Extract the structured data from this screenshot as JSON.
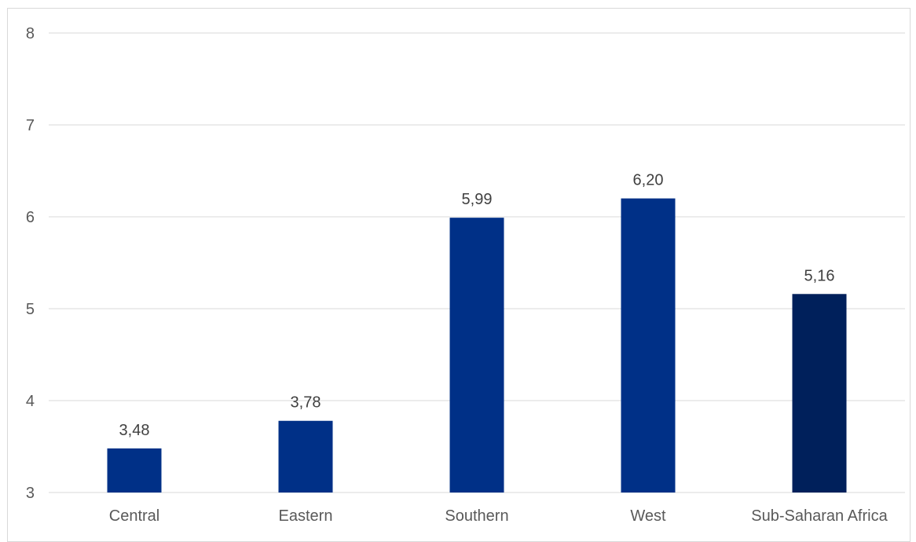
{
  "chart_data": {
    "type": "bar",
    "categories": [
      "Central",
      "Eastern",
      "Southern",
      "West",
      "Sub-Saharan Africa"
    ],
    "values": [
      3.48,
      3.78,
      5.99,
      6.2,
      5.16
    ],
    "data_labels": [
      "3,48",
      "3,78",
      "5,99",
      "6,20",
      "5,16"
    ],
    "bar_colors": [
      "#003087",
      "#003087",
      "#003087",
      "#003087",
      "#00205B"
    ],
    "title": "",
    "xlabel": "",
    "ylabel": "",
    "ylim": [
      3,
      8
    ],
    "yticks": [
      3,
      4,
      5,
      6,
      7,
      8
    ],
    "grid": true,
    "legend": "none"
  }
}
